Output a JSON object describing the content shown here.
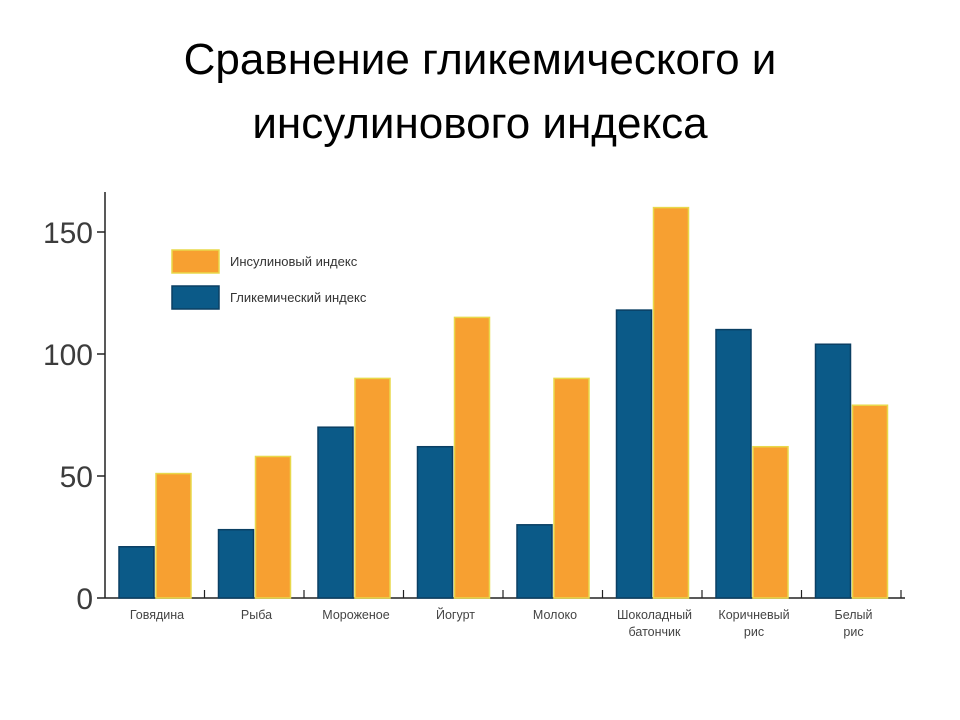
{
  "slide": {
    "title_line1": "Сравнение гликемического и",
    "title_line2": "инсулинового индекса"
  },
  "chart_data": {
    "type": "bar",
    "categories": [
      [
        "Говядина"
      ],
      [
        "Рыба"
      ],
      [
        "Мороженое"
      ],
      [
        "Йогурт"
      ],
      [
        "Молоко"
      ],
      [
        "Шоколадный",
        "батончик"
      ],
      [
        "Коричневый",
        "рис"
      ],
      [
        "Белый",
        "рис"
      ]
    ],
    "series": [
      {
        "name": "Гликемический индекс",
        "color": "#0b5a88",
        "values": [
          21,
          28,
          70,
          62,
          30,
          118,
          110,
          104
        ]
      },
      {
        "name": "Инсулиновый индекс",
        "color": "#f7a031",
        "values": [
          51,
          58,
          90,
          115,
          90,
          160,
          62,
          79
        ]
      }
    ],
    "legend_order": [
      1,
      0
    ],
    "legend_position": "top-left",
    "yticks": [
      0,
      50,
      100,
      150
    ],
    "ylim": [
      0,
      165
    ],
    "grid": false
  }
}
